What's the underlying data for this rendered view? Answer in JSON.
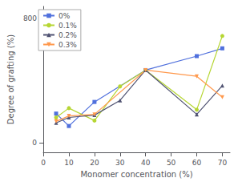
{
  "chart_data": {
    "type": "line",
    "xlabel": "Monomer concentration (%)",
    "ylabel": "Degree of grafting (%)",
    "xlim": [
      0,
      73
    ],
    "ylim": [
      -60,
      880
    ],
    "xticks": [
      0,
      10,
      20,
      30,
      40,
      50,
      60,
      70
    ],
    "yticks": [
      0,
      800
    ],
    "grid": false,
    "legend": "upper left",
    "series": [
      {
        "name": "0%",
        "marker": "square",
        "x": [
          5,
          10,
          20,
          40,
          60,
          70
        ],
        "values": [
          190,
          110,
          265,
          470,
          560,
          610
        ]
      },
      {
        "name": "0.1%",
        "marker": "circle",
        "x": [
          5,
          10,
          20,
          30,
          40,
          60,
          70
        ],
        "values": [
          165,
          225,
          145,
          365,
          470,
          215,
          690
        ]
      },
      {
        "name": "0.2%",
        "marker": "triangle-up",
        "x": [
          5,
          10,
          20,
          30,
          40,
          60,
          70
        ],
        "values": [
          130,
          165,
          180,
          275,
          470,
          185,
          370
        ]
      },
      {
        "name": "0.3%",
        "marker": "triangle-down",
        "x": [
          5,
          10,
          20,
          40,
          60,
          70
        ],
        "values": [
          140,
          175,
          185,
          470,
          430,
          295
        ]
      }
    ]
  }
}
